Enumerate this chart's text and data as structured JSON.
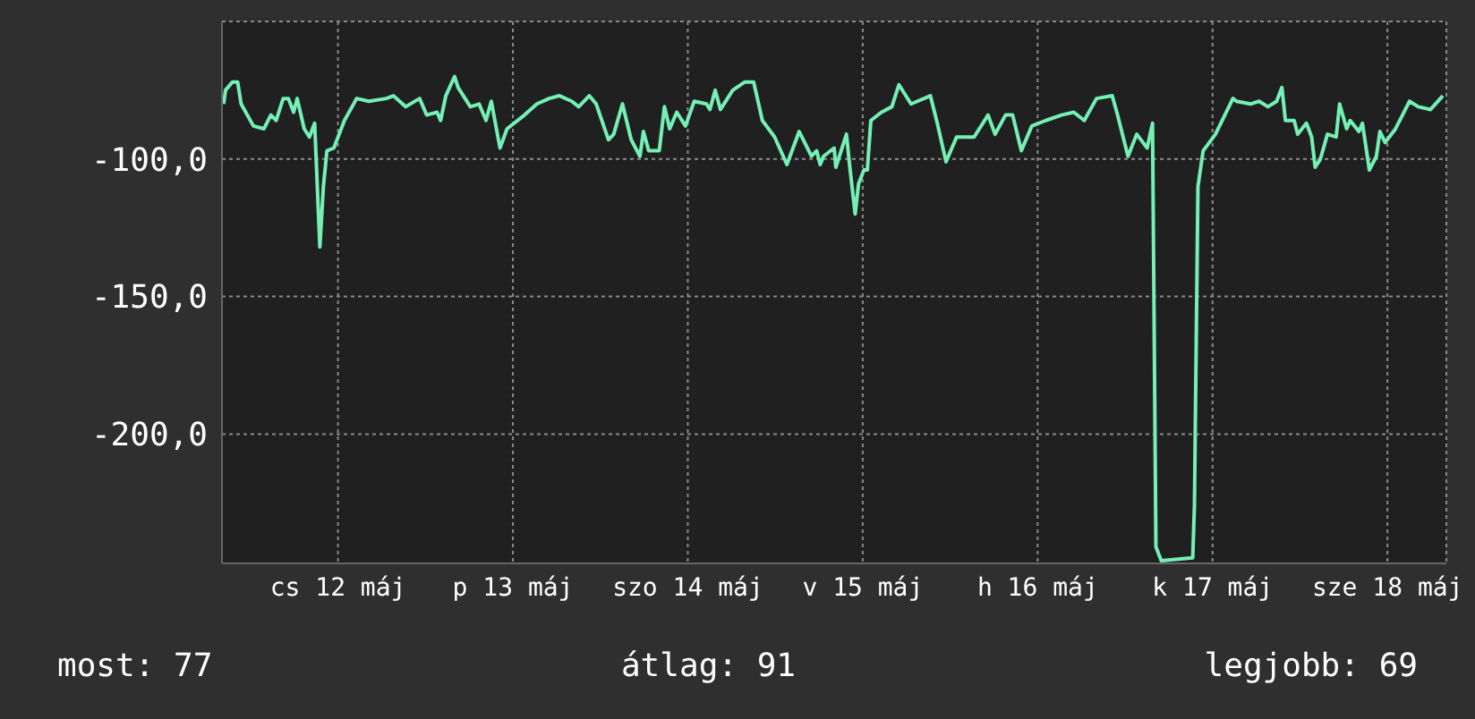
{
  "chart_data": {
    "type": "line",
    "x": [
      "--05-11T16:19",
      "--05-11T16:34",
      "--05-11T17:31",
      "--05-11T18:14",
      "--05-11T18:43",
      "--05-11T20:24",
      "--05-11T21:50",
      "--05-11T22:48",
      "--05-11T23:31",
      "--05-12T00:29",
      "--05-12T01:12",
      "--05-12T01:55",
      "--05-12T02:24",
      "--05-12T03:22",
      "--05-12T04:05",
      "--05-12T04:48",
      "--05-12T05:31",
      "--05-12T06:00",
      "--05-12T06:29",
      "--05-12T07:26",
      "--05-12T08:53",
      "--05-12T10:34",
      "--05-12T12:14",
      "--05-12T14:38",
      "--05-12T15:36",
      "--05-12T17:17",
      "--05-12T19:12",
      "--05-12T20:10",
      "--05-12T21:36",
      "--05-12T22:05",
      "--05-12T22:48",
      "--05-13T00:00",
      "--05-13T00:29",
      "--05-13T02:10",
      "--05-13T03:22",
      "--05-13T04:19",
      "--05-13T05:02",
      "--05-13T06:14",
      "--05-13T07:12",
      "--05-13T09:36",
      "--05-13T11:17",
      "--05-13T12:58",
      "--05-13T14:24",
      "--05-13T16:05",
      "--05-13T17:02",
      "--05-13T18:29",
      "--05-13T19:26",
      "--05-13T21:07",
      "--05-13T21:50",
      "--05-13T23:02",
      "--05-14T00:14",
      "--05-14T01:26",
      "--05-14T01:55",
      "--05-14T02:38",
      "--05-14T04:05",
      "--05-14T04:48",
      "--05-14T05:31",
      "--05-14T06:29",
      "--05-14T07:41",
      "--05-14T08:53",
      "--05-14T10:34",
      "--05-14T11:02",
      "--05-14T11:46",
      "--05-14T12:29",
      "--05-14T14:10",
      "--05-14T15:50",
      "--05-14T17:02",
      "--05-14T18:14",
      "--05-14T19:55",
      "--05-14T21:36",
      "--05-14T23:17",
      "--05-15T00:58",
      "--05-15T01:41",
      "--05-15T02:10",
      "--05-15T02:38",
      "--05-15T04:05",
      "--05-15T04:19",
      "--05-15T05:46",
      "--05-15T06:14",
      "--05-15T06:58",
      "--05-15T07:26",
      "--05-15T08:10",
      "--05-15T08:38",
      "--05-15T09:07",
      "--05-15T10:34",
      "--05-15T12:00",
      "--05-15T12:58",
      "--05-15T14:38",
      "--05-15T17:17",
      "--05-15T18:14",
      "--05-15T19:26",
      "--05-15T20:53",
      "--05-15T22:05",
      "--05-15T23:17",
      "--05-16T01:12",
      "--05-16T02:10",
      "--05-16T03:36",
      "--05-16T04:34",
      "--05-16T05:46",
      "--05-16T07:12",
      "--05-16T09:07",
      "--05-16T11:17",
      "--05-16T12:58",
      "--05-16T14:24",
      "--05-16T16:05",
      "--05-16T18:14",
      "--05-16T18:58",
      "--05-16T20:24",
      "--05-16T21:36",
      "--05-16T23:02",
      "--05-16T23:46",
      "--05-17T00:14",
      "--05-17T00:58",
      "--05-17T05:17",
      "--05-17T05:31",
      "--05-17T06:00",
      "--05-17T06:43",
      "--05-17T08:24",
      "--05-17T10:48",
      "--05-17T11:17",
      "--05-17T13:12",
      "--05-17T14:24",
      "--05-17T15:36",
      "--05-17T16:48",
      "--05-17T17:31",
      "--05-17T18:00",
      "--05-17T19:12",
      "--05-17T19:41",
      "--05-17T20:53",
      "--05-17T21:36",
      "--05-17T22:05",
      "--05-17T22:48",
      "--05-17T23:46",
      "--05-18T00:58",
      "--05-18T01:26",
      "--05-18T02:24",
      "--05-18T02:53",
      "--05-18T04:05",
      "--05-18T04:34",
      "--05-18T05:31",
      "--05-18T06:29",
      "--05-18T06:58",
      "--05-18T07:41",
      "--05-18T09:07",
      "--05-18T11:02",
      "--05-18T12:14",
      "--05-18T13:55",
      "--05-18T15:36"
    ],
    "series": [
      {
        "color": "#74f0b4",
        "values": [
          -80,
          -75,
          -72,
          -72,
          -80,
          -88,
          -89,
          -84,
          -86,
          -78,
          -78,
          -83,
          -78,
          -89,
          -92,
          -87,
          -132,
          -110,
          -97,
          -96,
          -86,
          -78,
          -79,
          -78,
          -77,
          -81,
          -78,
          -84,
          -83,
          -86,
          -77,
          -70,
          -74,
          -81,
          -80,
          -86,
          -79,
          -96,
          -89,
          -84,
          -80,
          -78,
          -77,
          -79,
          -81,
          -77,
          -80,
          -93,
          -91,
          -80,
          -93,
          -99,
          -90,
          -97,
          -97,
          -81,
          -89,
          -83,
          -88,
          -79,
          -80,
          -82,
          -75,
          -82,
          -75,
          -72,
          -72,
          -86,
          -92,
          -102,
          -90,
          -99,
          -97,
          -102,
          -99,
          -96,
          -103,
          -91,
          -103,
          -120,
          -109,
          -104,
          -104,
          -86,
          -83,
          -81,
          -73,
          -80,
          -77,
          -87,
          -101,
          -92,
          -92,
          -92,
          -84,
          -91,
          -84,
          -84,
          -97,
          -88,
          -86,
          -84,
          -83,
          -86,
          -78,
          -77,
          -84,
          -99,
          -91,
          -96,
          -87,
          -241,
          -246,
          -245,
          -226,
          -110,
          -97,
          -91,
          -78,
          -79,
          -80,
          -79,
          -81,
          -79,
          -74,
          -86,
          -86,
          -91,
          -87,
          -92,
          -103,
          -100,
          -91,
          -92,
          -80,
          -89,
          -86,
          -90,
          -87,
          -104,
          -99,
          -90,
          -94,
          -89,
          -79,
          -81,
          -82,
          -77
        ]
      }
    ],
    "xlim": [
      "--05-11T16:05",
      "--05-18T16:05"
    ],
    "xticks": [
      {
        "value": "--05-12T08:00",
        "label": "cs 12 máj"
      },
      {
        "value": "--05-13T08:00",
        "label": "p 13 máj"
      },
      {
        "value": "--05-14T08:00",
        "label": "szo 14 máj"
      },
      {
        "value": "--05-15T08:00",
        "label": "v 15 máj"
      },
      {
        "value": "--05-16T08:00",
        "label": "h 16 máj"
      },
      {
        "value": "--05-17T08:00",
        "label": "k 17 máj"
      },
      {
        "value": "--05-18T08:00",
        "label": "sze 18 máj"
      }
    ],
    "ylim": [
      -247,
      -50
    ],
    "yticks": [
      {
        "value": -100,
        "label": "-100,0"
      },
      {
        "value": -150,
        "label": "-150,0"
      },
      {
        "value": -200,
        "label": "-200,0"
      }
    ],
    "grid": true,
    "line_style": "solid",
    "annotations": [
      "most: 77",
      "átlag: 91",
      "legjobb: 69"
    ]
  }
}
